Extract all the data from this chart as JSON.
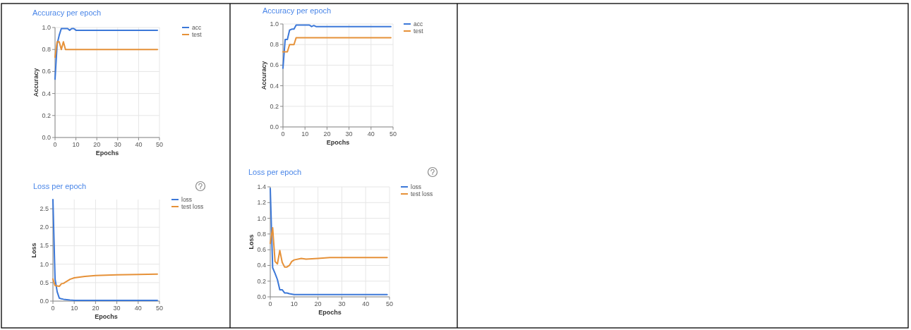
{
  "chart_data": [
    {
      "type": "line",
      "title": "Accuracy per epoch",
      "xlabel": "Epochs",
      "ylabel": "Accuracy",
      "xlim": [
        0,
        50
      ],
      "ylim": [
        0,
        1
      ],
      "xticks": [
        0,
        10,
        20,
        30,
        40,
        50
      ],
      "yticks": [
        {
          "value": 0,
          "label": "0.0"
        },
        0.2,
        0.4,
        0.6,
        0.8,
        {
          "value": 1,
          "label": "1.0"
        }
      ],
      "grid": true,
      "legend": "top right",
      "series": [
        {
          "name": "acc",
          "color": "#3c78d8",
          "x": [
            0,
            1,
            2,
            3,
            4,
            5,
            6,
            7,
            8,
            9,
            10,
            49
          ],
          "values": [
            0.53,
            0.85,
            0.93,
            0.99,
            0.99,
            0.99,
            0.99,
            0.975,
            0.99,
            0.99,
            0.975,
            0.975
          ]
        },
        {
          "name": "test",
          "color": "#e69138",
          "x": [
            0,
            1,
            2,
            3,
            4,
            5,
            49
          ],
          "values": [
            0.73,
            0.87,
            0.87,
            0.8,
            0.87,
            0.8,
            0.8
          ]
        }
      ]
    },
    {
      "type": "line",
      "title": "Accuracy per epoch",
      "xlabel": "Epochs",
      "ylabel": "Accuracy",
      "xlim": [
        0,
        50
      ],
      "ylim": [
        0,
        1
      ],
      "xticks": [
        0,
        10,
        20,
        30,
        40,
        50
      ],
      "yticks": [
        {
          "value": 0,
          "label": "0.0"
        },
        0.2,
        0.4,
        0.6,
        0.8,
        {
          "value": 1,
          "label": "1.0"
        }
      ],
      "grid": true,
      "legend": "top right",
      "series": [
        {
          "name": "acc",
          "color": "#3c78d8",
          "x": [
            0,
            1,
            2,
            3,
            4,
            5,
            6,
            12,
            13,
            14,
            15,
            49
          ],
          "values": [
            0.57,
            0.85,
            0.85,
            0.94,
            0.95,
            0.95,
            0.99,
            0.99,
            0.975,
            0.985,
            0.975,
            0.975
          ]
        },
        {
          "name": "test",
          "color": "#e69138",
          "x": [
            0,
            1,
            2,
            3,
            4,
            5,
            6,
            49
          ],
          "values": [
            0.73,
            0.73,
            0.73,
            0.8,
            0.8,
            0.8,
            0.867,
            0.867
          ]
        }
      ]
    },
    {
      "type": "line",
      "title": "Loss per epoch",
      "xlabel": "Epochs",
      "ylabel": "Loss",
      "xlim": [
        0,
        50
      ],
      "ylim": [
        0,
        2.75
      ],
      "xticks": [
        0,
        10,
        20,
        30,
        40,
        50
      ],
      "yticks": [
        {
          "value": 0,
          "label": "0.0"
        },
        0.5,
        {
          "value": 1,
          "label": "1.0"
        },
        1.5,
        {
          "value": 2,
          "label": "2.0"
        },
        2.5
      ],
      "grid": true,
      "legend": "top right",
      "series": [
        {
          "name": "loss",
          "color": "#3c78d8",
          "x": [
            0,
            1,
            2,
            3,
            4,
            5,
            8,
            10,
            49
          ],
          "values": [
            2.75,
            0.6,
            0.25,
            0.08,
            0.06,
            0.05,
            0.03,
            0.02,
            0.02
          ]
        },
        {
          "name": "test loss",
          "color": "#e69138",
          "x": [
            0,
            1,
            2,
            3,
            4,
            5,
            6,
            8,
            10,
            15,
            20,
            30,
            40,
            49
          ],
          "values": [
            0.6,
            0.42,
            0.41,
            0.4,
            0.47,
            0.48,
            0.52,
            0.59,
            0.63,
            0.67,
            0.69,
            0.71,
            0.72,
            0.73
          ]
        }
      ]
    },
    {
      "type": "line",
      "title": "Loss per epoch",
      "xlabel": "Epochs",
      "ylabel": "Loss",
      "xlim": [
        0,
        50
      ],
      "ylim": [
        0,
        1.4
      ],
      "xticks": [
        0,
        10,
        20,
        30,
        40,
        50
      ],
      "yticks": [
        {
          "value": 0,
          "label": "0.0"
        },
        0.2,
        0.4,
        0.6,
        0.8,
        {
          "value": 1,
          "label": "1.0"
        },
        1.2,
        1.4
      ],
      "grid": true,
      "legend": "top right",
      "series": [
        {
          "name": "loss",
          "color": "#3c78d8",
          "x": [
            0,
            1,
            2,
            3,
            4,
            5,
            6,
            7,
            8,
            10,
            15,
            49
          ],
          "values": [
            1.38,
            0.37,
            0.3,
            0.22,
            0.09,
            0.09,
            0.05,
            0.05,
            0.04,
            0.03,
            0.03,
            0.03
          ]
        },
        {
          "name": "test loss",
          "color": "#e69138",
          "x": [
            0,
            1,
            2,
            3,
            4,
            5,
            6,
            7,
            8,
            9,
            10,
            13,
            15,
            20,
            25,
            49
          ],
          "values": [
            0.68,
            0.88,
            0.45,
            0.42,
            0.59,
            0.44,
            0.38,
            0.38,
            0.4,
            0.45,
            0.47,
            0.49,
            0.48,
            0.49,
            0.5,
            0.5
          ]
        }
      ]
    }
  ]
}
